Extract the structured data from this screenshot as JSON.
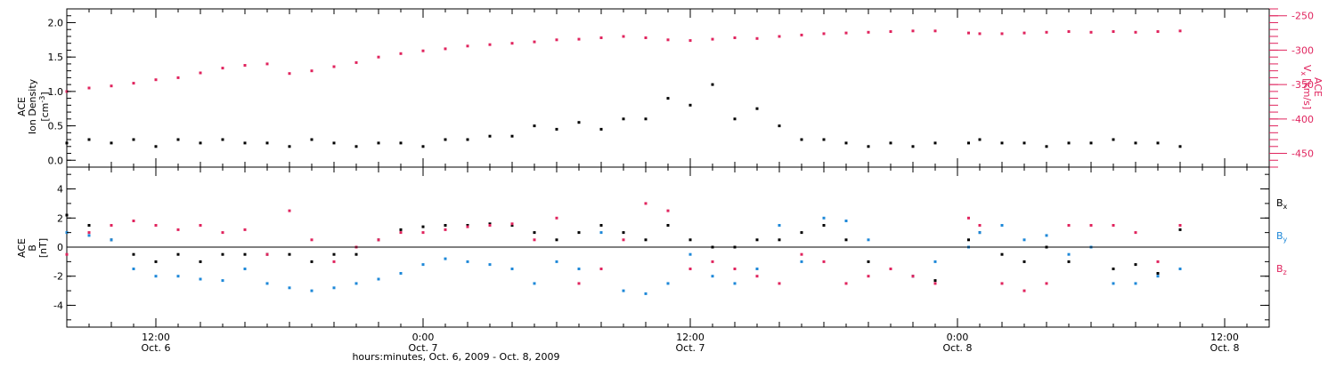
{
  "colors": {
    "black": "#000000",
    "pink": "#e0245e",
    "blue": "#1e88d8"
  },
  "x_axis": {
    "ticks": [
      {
        "t": 12,
        "time": "12:00",
        "date": "Oct. 6"
      },
      {
        "t": 24,
        "time": "0:00",
        "date": "Oct. 7"
      },
      {
        "t": 36,
        "time": "12:00",
        "date": "Oct. 7"
      },
      {
        "t": 48,
        "time": "0:00",
        "date": "Oct. 8"
      },
      {
        "t": 60,
        "time": "12:00",
        "date": "Oct. 8"
      }
    ],
    "title": "hours:minutes, Oct.  6, 2009 - Oct.  8, 2009"
  },
  "panel1": {
    "ylabel_line1": "ACE",
    "ylabel_line2": "Ion Density",
    "ylabel_units": "[cm",
    "ylabel_units_sup": "-3",
    "ylabel_units_end": "]",
    "right_label_line1": "ACE",
    "right_label_var": "V",
    "right_label_sub": "x",
    "right_label_units": "[km/s]",
    "left_ticks": [
      "0.0",
      "0.5",
      "1.0",
      "1.5",
      "2.0"
    ],
    "right_ticks": [
      "-450",
      "-400",
      "-350",
      "-300",
      "-250"
    ]
  },
  "panel2": {
    "ylabel_line1": "ACE",
    "ylabel_line2": "B",
    "ylabel_units": "[nT]",
    "ticks": [
      "-4",
      "-2",
      "0",
      "2",
      "4"
    ],
    "legend": [
      {
        "var": "B",
        "sub": "x",
        "color": "#000000"
      },
      {
        "var": "B",
        "sub": "y",
        "color": "#1e88d8"
      },
      {
        "var": "B",
        "sub": "z",
        "color": "#e0245e"
      }
    ]
  },
  "chart_data": [
    {
      "type": "scatter",
      "x_unit": "hours since Oct. 6, 2009 00:00",
      "xlim": [
        8,
        62
      ],
      "ylim_left": [
        -0.1,
        2.2
      ],
      "ylim_right": [
        -470,
        -240
      ],
      "series": [
        {
          "name": "Ion Density",
          "color": "#000000",
          "axis": "left",
          "points": [
            [
              8,
              0.25
            ],
            [
              9,
              0.3
            ],
            [
              10,
              0.25
            ],
            [
              11,
              0.3
            ],
            [
              12,
              0.2
            ],
            [
              13,
              0.3
            ],
            [
              14,
              0.25
            ],
            [
              15,
              0.3
            ],
            [
              16,
              0.25
            ],
            [
              17,
              0.25
            ],
            [
              18,
              0.2
            ],
            [
              19,
              0.3
            ],
            [
              20,
              0.25
            ],
            [
              21,
              0.2
            ],
            [
              22,
              0.25
            ],
            [
              23,
              0.25
            ],
            [
              24,
              0.2
            ],
            [
              25,
              0.3
            ],
            [
              26,
              0.3
            ],
            [
              27,
              0.35
            ],
            [
              28,
              0.35
            ],
            [
              29,
              0.5
            ],
            [
              30,
              0.45
            ],
            [
              31,
              0.55
            ],
            [
              32,
              0.45
            ],
            [
              33,
              0.6
            ],
            [
              34,
              0.6
            ],
            [
              35,
              0.9
            ],
            [
              36,
              0.8
            ],
            [
              37,
              1.1
            ],
            [
              38,
              0.6
            ],
            [
              39,
              0.75
            ],
            [
              40,
              0.5
            ],
            [
              41,
              0.3
            ],
            [
              42,
              0.3
            ],
            [
              43,
              0.25
            ],
            [
              44,
              0.2
            ],
            [
              45,
              0.25
            ],
            [
              46,
              0.2
            ],
            [
              47,
              0.25
            ],
            [
              48.5,
              0.25
            ],
            [
              49,
              0.3
            ],
            [
              50,
              0.25
            ],
            [
              51,
              0.25
            ],
            [
              52,
              0.2
            ],
            [
              53,
              0.25
            ],
            [
              54,
              0.25
            ],
            [
              55,
              0.3
            ],
            [
              56,
              0.25
            ],
            [
              57,
              0.25
            ],
            [
              58,
              0.2
            ]
          ]
        },
        {
          "name": "Vx",
          "color": "#e0245e",
          "axis": "right",
          "points": [
            [
              8,
              -360
            ],
            [
              9,
              -355
            ],
            [
              10,
              -352
            ],
            [
              11,
              -348
            ],
            [
              12,
              -343
            ],
            [
              13,
              -340
            ],
            [
              14,
              -333
            ],
            [
              15,
              -326
            ],
            [
              16,
              -322
            ],
            [
              17,
              -320
            ],
            [
              18,
              -334
            ],
            [
              19,
              -330
            ],
            [
              20,
              -324
            ],
            [
              21,
              -318
            ],
            [
              22,
              -310
            ],
            [
              23,
              -305
            ],
            [
              24,
              -301
            ],
            [
              25,
              -298
            ],
            [
              26,
              -294
            ],
            [
              27,
              -292
            ],
            [
              28,
              -290
            ],
            [
              29,
              -288
            ],
            [
              30,
              -285
            ],
            [
              31,
              -284
            ],
            [
              32,
              -282
            ],
            [
              33,
              -280
            ],
            [
              34,
              -282
            ],
            [
              35,
              -285
            ],
            [
              36,
              -286
            ],
            [
              37,
              -284
            ],
            [
              38,
              -282
            ],
            [
              39,
              -283
            ],
            [
              40,
              -280
            ],
            [
              41,
              -278
            ],
            [
              42,
              -276
            ],
            [
              43,
              -275
            ],
            [
              44,
              -274
            ],
            [
              45,
              -273
            ],
            [
              46,
              -272
            ],
            [
              47,
              -272
            ],
            [
              48.5,
              -275
            ],
            [
              49,
              -276
            ],
            [
              50,
              -276
            ],
            [
              51,
              -275
            ],
            [
              52,
              -274
            ],
            [
              53,
              -273
            ],
            [
              54,
              -274
            ],
            [
              55,
              -273
            ],
            [
              56,
              -274
            ],
            [
              57,
              -273
            ],
            [
              58,
              -272
            ]
          ]
        }
      ]
    },
    {
      "type": "scatter",
      "x_unit": "hours since Oct. 6, 2009 00:00",
      "xlim": [
        8,
        62
      ],
      "ylim": [
        -5.5,
        5.5
      ],
      "baseline": 0,
      "series": [
        {
          "name": "Bx",
          "color": "#000000",
          "points": [
            [
              8,
              2.2
            ],
            [
              9,
              1.5
            ],
            [
              10,
              0.5
            ],
            [
              11,
              -0.5
            ],
            [
              12,
              -1.0
            ],
            [
              13,
              -0.5
            ],
            [
              14,
              -1.0
            ],
            [
              15,
              -0.5
            ],
            [
              16,
              -0.5
            ],
            [
              17,
              -0.5
            ],
            [
              18,
              -0.5
            ],
            [
              19,
              -1.0
            ],
            [
              20,
              -0.5
            ],
            [
              21,
              -0.5
            ],
            [
              22,
              0.5
            ],
            [
              23,
              1.2
            ],
            [
              24,
              1.4
            ],
            [
              25,
              1.5
            ],
            [
              26,
              1.5
            ],
            [
              27,
              1.6
            ],
            [
              28,
              1.5
            ],
            [
              29,
              1.0
            ],
            [
              30,
              0.5
            ],
            [
              31,
              1.0
            ],
            [
              32,
              1.5
            ],
            [
              33,
              1.0
            ],
            [
              34,
              0.5
            ],
            [
              35,
              1.5
            ],
            [
              36,
              0.5
            ],
            [
              37,
              0.0
            ],
            [
              38,
              0.0
            ],
            [
              39,
              0.5
            ],
            [
              40,
              0.5
            ],
            [
              41,
              1.0
            ],
            [
              42,
              1.5
            ],
            [
              43,
              0.5
            ],
            [
              44,
              -1.0
            ],
            [
              45,
              -1.5
            ],
            [
              46,
              -2.0
            ],
            [
              47,
              -2.3
            ],
            [
              48.5,
              0.5
            ],
            [
              49,
              1.0
            ],
            [
              50,
              -0.5
            ],
            [
              51,
              -1.0
            ],
            [
              52,
              0.0
            ],
            [
              53,
              -1.0
            ],
            [
              54,
              0.0
            ],
            [
              55,
              -1.5
            ],
            [
              56,
              -1.2
            ],
            [
              57,
              -1.8
            ],
            [
              58,
              1.2
            ]
          ]
        },
        {
          "name": "By",
          "color": "#1e88d8",
          "points": [
            [
              8,
              1.0
            ],
            [
              9,
              0.8
            ],
            [
              10,
              0.5
            ],
            [
              11,
              -1.5
            ],
            [
              12,
              -2.0
            ],
            [
              13,
              -2.0
            ],
            [
              14,
              -2.2
            ],
            [
              15,
              -2.3
            ],
            [
              16,
              -1.5
            ],
            [
              17,
              -2.5
            ],
            [
              18,
              -2.8
            ],
            [
              19,
              -3.0
            ],
            [
              20,
              -2.8
            ],
            [
              21,
              -2.5
            ],
            [
              22,
              -2.2
            ],
            [
              23,
              -1.8
            ],
            [
              24,
              -1.2
            ],
            [
              25,
              -0.8
            ],
            [
              26,
              -1.0
            ],
            [
              27,
              -1.2
            ],
            [
              28,
              -1.5
            ],
            [
              29,
              -2.5
            ],
            [
              30,
              -1.0
            ],
            [
              31,
              -1.5
            ],
            [
              32,
              1.0
            ],
            [
              33,
              -3.0
            ],
            [
              34,
              -3.2
            ],
            [
              35,
              -2.5
            ],
            [
              36,
              -0.5
            ],
            [
              37,
              -2.0
            ],
            [
              38,
              -2.5
            ],
            [
              39,
              -1.5
            ],
            [
              40,
              1.5
            ],
            [
              41,
              -1.0
            ],
            [
              42,
              2.0
            ],
            [
              43,
              1.8
            ],
            [
              44,
              0.5
            ],
            [
              45,
              -1.5
            ],
            [
              46,
              -2.0
            ],
            [
              47,
              -1.0
            ],
            [
              48.5,
              0.0
            ],
            [
              49,
              1.0
            ],
            [
              50,
              1.5
            ],
            [
              51,
              0.5
            ],
            [
              52,
              0.8
            ],
            [
              53,
              -0.5
            ],
            [
              54,
              0.0
            ],
            [
              55,
              -2.5
            ],
            [
              56,
              -2.5
            ],
            [
              57,
              -2.0
            ],
            [
              58,
              -1.5
            ]
          ]
        },
        {
          "name": "Bz",
          "color": "#e0245e",
          "points": [
            [
              8,
              -0.5
            ],
            [
              9,
              1.0
            ],
            [
              10,
              1.5
            ],
            [
              11,
              1.8
            ],
            [
              12,
              1.5
            ],
            [
              13,
              1.2
            ],
            [
              14,
              1.5
            ],
            [
              15,
              1.0
            ],
            [
              16,
              1.2
            ],
            [
              17,
              -0.5
            ],
            [
              18,
              2.5
            ],
            [
              19,
              0.5
            ],
            [
              20,
              -1.0
            ],
            [
              21,
              0.0
            ],
            [
              22,
              0.5
            ],
            [
              23,
              1.0
            ],
            [
              24,
              1.0
            ],
            [
              25,
              1.2
            ],
            [
              26,
              1.4
            ],
            [
              27,
              1.5
            ],
            [
              28,
              1.6
            ],
            [
              29,
              0.5
            ],
            [
              30,
              2.0
            ],
            [
              31,
              -2.5
            ],
            [
              32,
              -1.5
            ],
            [
              33,
              0.5
            ],
            [
              34,
              3.0
            ],
            [
              35,
              2.5
            ],
            [
              36,
              -1.5
            ],
            [
              37,
              -1.0
            ],
            [
              38,
              -1.5
            ],
            [
              39,
              -2.0
            ],
            [
              40,
              -2.5
            ],
            [
              41,
              -0.5
            ],
            [
              42,
              -1.0
            ],
            [
              43,
              -2.5
            ],
            [
              44,
              -2.0
            ],
            [
              45,
              -1.5
            ],
            [
              46,
              -2.0
            ],
            [
              47,
              -2.5
            ],
            [
              48.5,
              2.0
            ],
            [
              49,
              1.5
            ],
            [
              50,
              -2.5
            ],
            [
              51,
              -3.0
            ],
            [
              52,
              -2.5
            ],
            [
              53,
              1.5
            ],
            [
              54,
              1.5
            ],
            [
              55,
              1.5
            ],
            [
              56,
              1.0
            ],
            [
              57,
              -1.0
            ],
            [
              58,
              1.5
            ]
          ]
        }
      ]
    }
  ]
}
